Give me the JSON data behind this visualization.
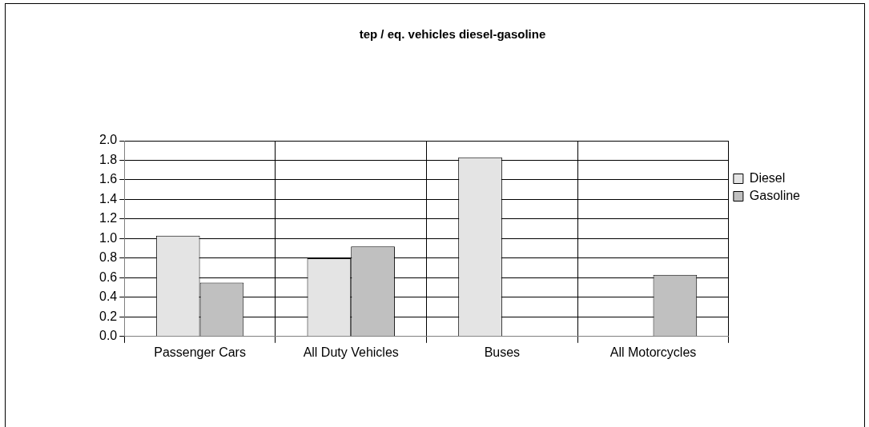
{
  "chart_data": {
    "type": "bar",
    "title": "tep / eq. vehicles diesel-gasoline",
    "categories": [
      "Passenger Cars",
      "All Duty Vehicles",
      "Buses",
      "All Motorcycles"
    ],
    "series": [
      {
        "name": "Diesel",
        "color": "#e4e4e4",
        "values": [
          1.03,
          0.8,
          1.83,
          null
        ]
      },
      {
        "name": "Gasoline",
        "color": "#c0c0c0",
        "values": [
          0.55,
          0.92,
          null,
          0.63
        ]
      }
    ],
    "ylim": [
      0,
      2
    ],
    "yticks": [
      {
        "value": 0,
        "label": "0.0"
      },
      {
        "value": 0.2,
        "label": "0.2"
      },
      {
        "value": 0.4,
        "label": "0.4"
      },
      {
        "value": 0.6,
        "label": "0.6"
      },
      {
        "value": 0.8,
        "label": "0.8"
      },
      {
        "value": 1,
        "label": "1.0"
      },
      {
        "value": 1.2,
        "label": "1.2"
      },
      {
        "value": 1.4,
        "label": "1.4"
      },
      {
        "value": 1.6,
        "label": "1.6"
      },
      {
        "value": 1.8,
        "label": "1.8"
      },
      {
        "value": 2,
        "label": "2.0"
      }
    ],
    "grid": true,
    "legend": "right"
  }
}
